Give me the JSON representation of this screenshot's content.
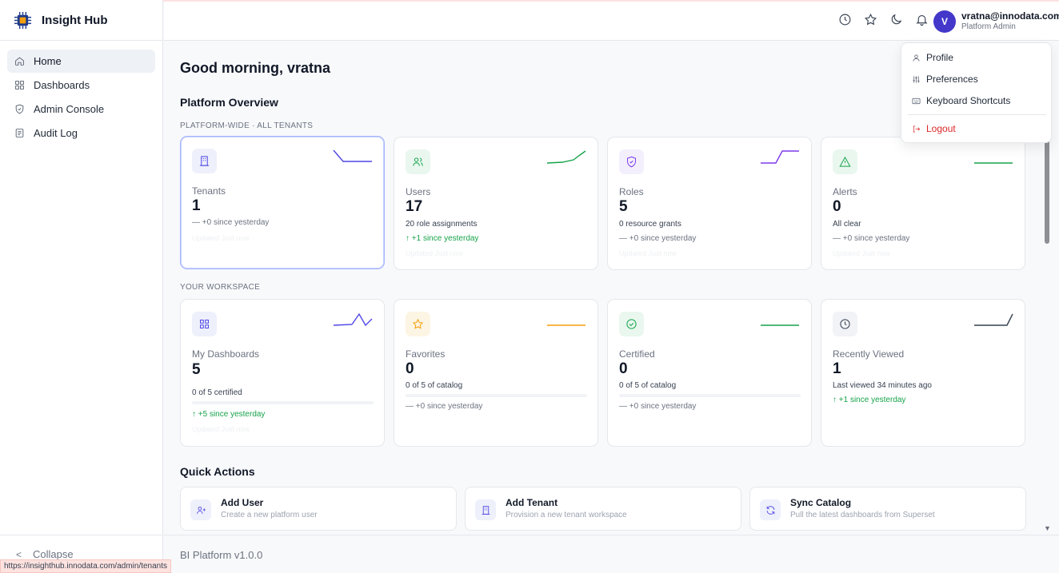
{
  "app": {
    "name": "Insight Hub"
  },
  "sidebar": {
    "items": [
      {
        "label": "Home",
        "icon": "home-icon",
        "active": true
      },
      {
        "label": "Dashboards",
        "icon": "grid-icon"
      },
      {
        "label": "Admin Console",
        "icon": "shield-icon"
      },
      {
        "label": "Audit Log",
        "icon": "log-icon"
      }
    ],
    "collapse_label": "Collapse"
  },
  "header": {
    "icons": [
      "clock-icon",
      "star-icon",
      "moon-icon",
      "bell-icon"
    ],
    "avatar_initial": "V",
    "user_email": "vratna@innodata.com",
    "user_role": "Platform Admin"
  },
  "user_menu": {
    "items": [
      {
        "label": "Profile",
        "icon": "user-icon"
      },
      {
        "label": "Preferences",
        "icon": "sliders-icon"
      },
      {
        "label": "Keyboard Shortcuts",
        "icon": "keyboard-icon"
      },
      {
        "label": "Logout",
        "icon": "logout-icon"
      }
    ]
  },
  "main": {
    "greeting": "Good morning, vratna",
    "overview_title": "Platform Overview",
    "platform_label": "PLATFORM-WIDE · ALL TENANTS",
    "workspace_label": "YOUR WORKSPACE",
    "platform_cards": [
      {
        "label": "Tenants",
        "value": "1",
        "delta": "— +0 since yesterday",
        "updated": "Updated Just now",
        "icon": "building-icon",
        "color": "#4f46e5",
        "bg": "#eef0fb"
      },
      {
        "label": "Users",
        "value": "17",
        "sub": "20 role assignments",
        "delta": "↑ +1 since yesterday",
        "updated": "Updated Just now",
        "icon": "users-icon",
        "color": "#16a34a",
        "bg": "#e9f7ef"
      },
      {
        "label": "Roles",
        "value": "5",
        "sub": "0 resource grants",
        "delta": "— +0 since yesterday",
        "updated": "Updated Just now",
        "icon": "shield-check-icon",
        "color": "#7c3aed",
        "bg": "#f3effd"
      },
      {
        "label": "Alerts",
        "value": "0",
        "sub": "All clear",
        "delta": "— +0 since yesterday",
        "updated": "Updated Just now",
        "icon": "alert-icon",
        "color": "#16a34a",
        "bg": "#e9f7ef"
      }
    ],
    "workspace_cards": [
      {
        "label": "My Dashboards",
        "value": "5",
        "sub": "0 of 5 certified",
        "delta": "↑ +5 since yesterday",
        "updated": "Updated Just now",
        "icon": "grid-icon",
        "color": "#4f46e5",
        "bg": "#eef0fb",
        "progress": 0
      },
      {
        "label": "Favorites",
        "value": "0",
        "sub": "0 of 5 of catalog",
        "delta": "— +0 since yesterday",
        "icon": "star-icon",
        "color": "#f59e0b",
        "bg": "#fdf5e4",
        "progress": 0
      },
      {
        "label": "Certified",
        "value": "0",
        "sub": "0 of 5 of catalog",
        "delta": "— +0 since yesterday",
        "icon": "check-circle-icon",
        "color": "#16a34a",
        "bg": "#e9f7ef",
        "progress": 0
      },
      {
        "label": "Recently Viewed",
        "value": "1",
        "sub": "Last viewed 34 minutes ago",
        "delta": "↑ +1 since yesterday",
        "icon": "clock-icon",
        "color": "#374151",
        "bg": "#f1f3f6"
      }
    ],
    "quick_actions_title": "Quick Actions",
    "quick_actions": [
      {
        "title": "Add User",
        "desc": "Create a new platform user",
        "icon": "user-plus-icon"
      },
      {
        "title": "Add Tenant",
        "desc": "Provision a new tenant workspace",
        "icon": "building-icon"
      },
      {
        "title": "Sync Catalog",
        "desc": "Pull the latest dashboards from Superset",
        "icon": "refresh-icon"
      }
    ]
  },
  "footer": {
    "version": "BI Platform v1.0.0"
  },
  "status_bar": {
    "url": "https://insighthub.innodata.com/admin/tenants"
  }
}
